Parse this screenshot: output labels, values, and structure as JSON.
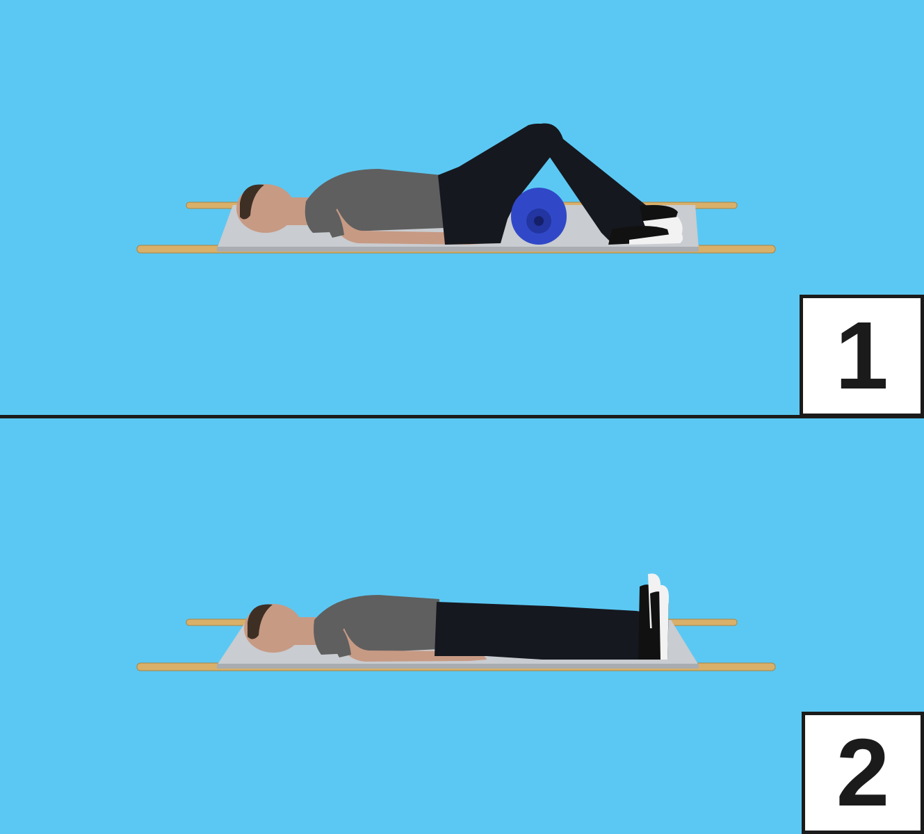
{
  "steps": [
    {
      "number": "1",
      "pose": "knees-bent-over-roll"
    },
    {
      "number": "2",
      "pose": "legs-extended"
    }
  ],
  "colors": {
    "background": "#5bc8f3",
    "divider": "#1b1b1b",
    "stretcher_cloth": "#c9ccd0",
    "stretcher_pole": "#d9b069",
    "shirt": "#5f5f5f",
    "trousers": "#16181f",
    "skin": "#c79a84",
    "roll": "#3048c8",
    "shoe_sole": "#f2f2f2"
  }
}
